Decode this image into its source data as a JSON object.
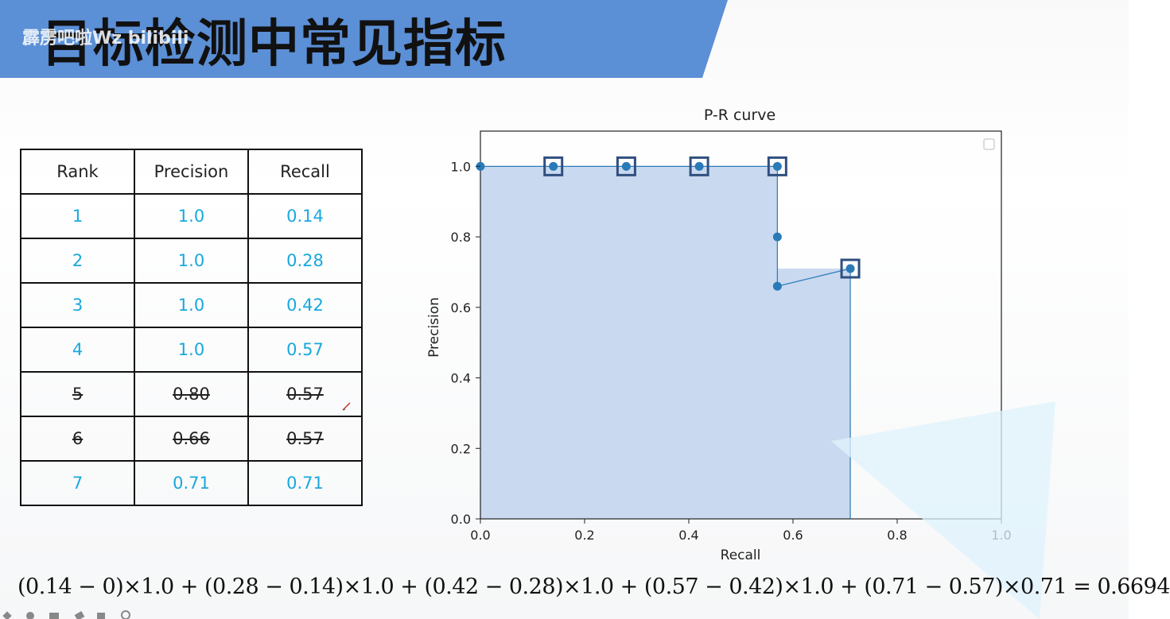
{
  "slide": {
    "title": "目标检测中常见指标",
    "watermark": "霹雳吧啦Wz bilibili"
  },
  "table": {
    "headers": [
      "Rank",
      "Precision",
      "Recall"
    ],
    "rows": [
      {
        "rank": "1",
        "precision": "1.0",
        "recall": "0.14",
        "struck": false
      },
      {
        "rank": "2",
        "precision": "1.0",
        "recall": "0.28",
        "struck": false
      },
      {
        "rank": "3",
        "precision": "1.0",
        "recall": "0.42",
        "struck": false
      },
      {
        "rank": "4",
        "precision": "1.0",
        "recall": "0.57",
        "struck": false
      },
      {
        "rank": "5",
        "precision": "0.80",
        "recall": "0.57",
        "struck": true
      },
      {
        "rank": "6",
        "precision": "0.66",
        "recall": "0.57",
        "struck": true
      },
      {
        "rank": "7",
        "precision": "0.71",
        "recall": "0.71",
        "struck": false
      }
    ]
  },
  "chart_data": {
    "type": "line",
    "title": "P-R curve",
    "xlabel": "Recall",
    "ylabel": "Precision",
    "xlim": [
      0.0,
      1.0
    ],
    "ylim": [
      0.0,
      1.1
    ],
    "xticks": [
      "0.0",
      "0.2",
      "0.4",
      "0.6",
      "0.8",
      "1.0"
    ],
    "yticks": [
      "0.0",
      "0.2",
      "0.4",
      "0.6",
      "0.8",
      "1.0"
    ],
    "series": [
      {
        "x": [
          0.0,
          0.14,
          0.28,
          0.42,
          0.57,
          0.57,
          0.57,
          0.71
        ],
        "y": [
          1.0,
          1.0,
          1.0,
          1.0,
          1.0,
          0.8,
          0.66,
          0.71
        ]
      }
    ],
    "highlighted_points": [
      {
        "x": 0.14,
        "y": 1.0
      },
      {
        "x": 0.28,
        "y": 1.0
      },
      {
        "x": 0.42,
        "y": 1.0
      },
      {
        "x": 0.57,
        "y": 1.0
      },
      {
        "x": 0.71,
        "y": 0.71
      }
    ],
    "filled_area": {
      "x": [
        0.0,
        0.57,
        0.57,
        0.71,
        0.71
      ],
      "y": [
        1.0,
        1.0,
        0.71,
        0.71,
        0.0
      ]
    },
    "grid": false,
    "legend": "top-right (empty)",
    "colors": {
      "line": "#2a7ab8",
      "fill": "#c9d9ef",
      "marker_box": "#2f4f7f"
    }
  },
  "formula": "(0.14 − 0)×1.0 + (0.28 − 0.14)×1.0 + (0.42 − 0.28)×1.0 + (0.57 − 0.42)×1.0 + (0.71 − 0.57)×0.71 = 0.6694",
  "colors": {
    "banner": "#5b8fd6",
    "table_value": "#19a8dd"
  }
}
